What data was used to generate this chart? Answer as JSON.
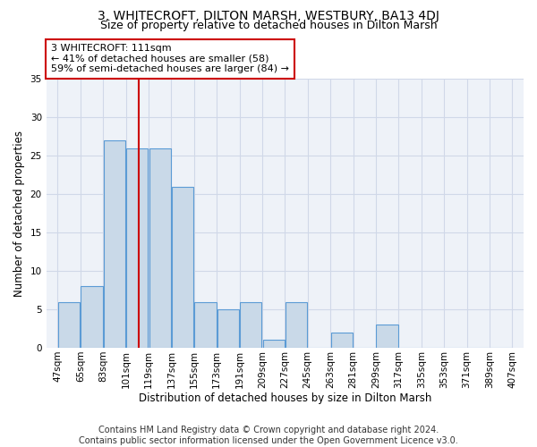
{
  "title": "3, WHITECROFT, DILTON MARSH, WESTBURY, BA13 4DJ",
  "subtitle": "Size of property relative to detached houses in Dilton Marsh",
  "xlabel": "Distribution of detached houses by size in Dilton Marsh",
  "ylabel": "Number of detached properties",
  "footer_line1": "Contains HM Land Registry data © Crown copyright and database right 2024.",
  "footer_line2": "Contains public sector information licensed under the Open Government Licence v3.0.",
  "annotation_line1": "3 WHITECROFT: 111sqm",
  "annotation_line2": "← 41% of detached houses are smaller (58)",
  "annotation_line3": "59% of semi-detached houses are larger (84) →",
  "property_size": 111,
  "bins": [
    47,
    65,
    83,
    101,
    119,
    137,
    155,
    173,
    191,
    209,
    227,
    245,
    263,
    281,
    299,
    317,
    335,
    353,
    371,
    389,
    407
  ],
  "values": [
    6,
    8,
    27,
    26,
    26,
    21,
    6,
    5,
    6,
    1,
    6,
    0,
    2,
    0,
    3,
    0,
    0,
    0,
    0,
    0
  ],
  "bar_color": "#c9d9e8",
  "bar_edge_color": "#5b9bd5",
  "vline_color": "#cc0000",
  "annotation_box_color": "#cc0000",
  "grid_color": "#d0d8e8",
  "background_color": "#eef2f8",
  "title_fontsize": 10,
  "subtitle_fontsize": 9,
  "axis_label_fontsize": 8.5,
  "tick_fontsize": 7.5,
  "annotation_fontsize": 8,
  "footer_fontsize": 7
}
